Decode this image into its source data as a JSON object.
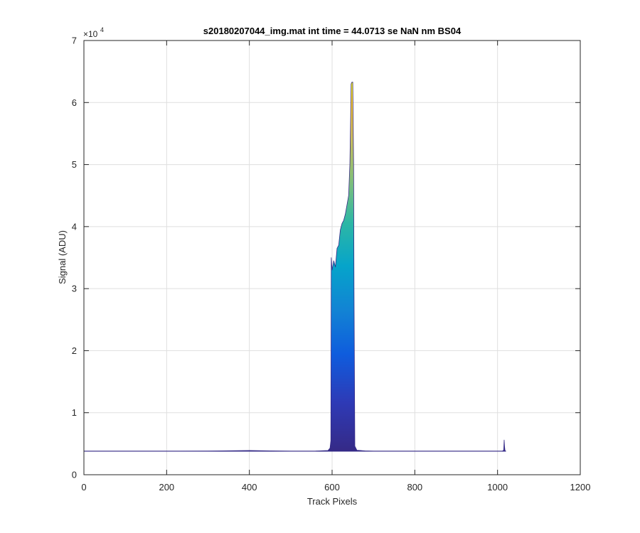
{
  "chart_data": {
    "type": "area",
    "title": "s20180207044_img.mat int time = 44.0713 se  NaN nm BS04",
    "xlabel": "Track Pixels",
    "ylabel": "Signal (ADU)",
    "xlim": [
      0,
      1200
    ],
    "ylim": [
      0,
      70000
    ],
    "y_exponent_label": "×10",
    "y_exponent_power": "4",
    "grid": true,
    "colormap": "parula",
    "x_ticks": [
      {
        "value": 0,
        "label": "0"
      },
      {
        "value": 200,
        "label": "200"
      },
      {
        "value": 400,
        "label": "400"
      },
      {
        "value": 600,
        "label": "600"
      },
      {
        "value": 800,
        "label": "800"
      },
      {
        "value": 1000,
        "label": "1000"
      },
      {
        "value": 1200,
        "label": "1200"
      }
    ],
    "y_ticks": [
      {
        "value": 0,
        "label": "0"
      },
      {
        "value": 10000,
        "label": "1"
      },
      {
        "value": 20000,
        "label": "2"
      },
      {
        "value": 30000,
        "label": "3"
      },
      {
        "value": 40000,
        "label": "4"
      },
      {
        "value": 50000,
        "label": "5"
      },
      {
        "value": 60000,
        "label": "6"
      },
      {
        "value": 70000,
        "label": "7"
      }
    ],
    "baseline": 3800,
    "signal_profile": {
      "x": [
        0,
        100,
        200,
        300,
        400,
        450,
        500,
        560,
        590,
        595,
        597,
        598,
        600,
        604,
        608,
        612,
        616,
        620,
        624,
        628,
        632,
        636,
        640,
        643,
        645,
        646,
        648,
        650,
        652,
        653,
        655,
        660,
        680,
        700,
        800,
        900,
        1000,
        1010,
        1013,
        1015,
        1016,
        1017,
        1018,
        1020
      ],
      "upper": [
        3800,
        3800,
        3800,
        3820,
        3900,
        3850,
        3800,
        3820,
        3900,
        4300,
        5500,
        35000,
        33000,
        34500,
        33500,
        36500,
        37000,
        39500,
        40500,
        41000,
        42000,
        43500,
        45000,
        50000,
        58000,
        63000,
        63300,
        63300,
        50000,
        30000,
        4600,
        3950,
        3850,
        3800,
        3800,
        3800,
        3800,
        3800,
        3850,
        4000,
        5600,
        4500,
        3900,
        3800
      ]
    }
  }
}
